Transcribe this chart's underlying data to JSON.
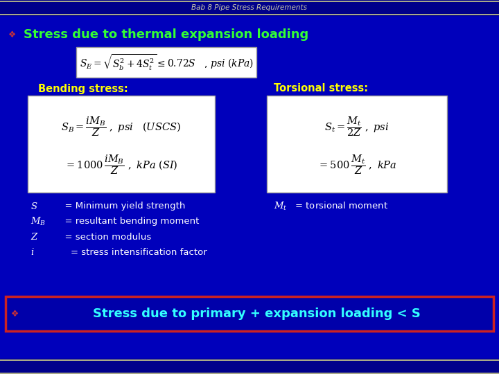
{
  "bg_color": "#0000BB",
  "title_bar_color": "#00008B",
  "title_text": "Bab 8 Pipe Stress Requirements",
  "title_text_color": "#CCCCAA",
  "title_line_color": "#CCCC88",
  "bullet_color": "#CC3333",
  "heading_color": "#33FF33",
  "heading_text": "Stress due to thermal expansion loading",
  "formula_box_color": "#FFFFFF",
  "formula_box_edge": "#999999",
  "formula_text_color": "#000000",
  "label_color": "#FFFF00",
  "body_text_color": "#FFFFFF",
  "bottom_bar_bg": "#0000AA",
  "bottom_bar_border": "#CC2222",
  "bottom_text_color": "#33FFFF",
  "bottom_text": "Stress due to primary + expansion loading < S",
  "fig_width": 7.2,
  "fig_height": 5.4,
  "dpi": 100
}
